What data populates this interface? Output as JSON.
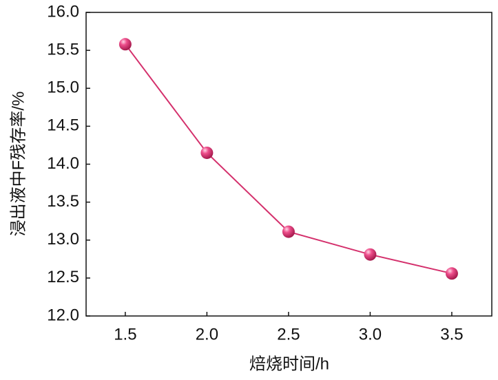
{
  "chart_data": {
    "type": "line",
    "xlabel": "焙烧时间/h",
    "ylabel": "浸出液中F残存率/%",
    "x": [
      1.5,
      2.0,
      2.5,
      3.0,
      3.5
    ],
    "series": [
      {
        "color": "#d4306c",
        "values": [
          15.58,
          14.15,
          13.11,
          12.81,
          12.56
        ]
      }
    ],
    "xlim": [
      1.26,
      3.745
    ],
    "xticks": [
      1.5,
      {
        "value": 2,
        "label": "2.0"
      },
      2.5,
      {
        "value": 3,
        "label": "3.0"
      },
      3.5
    ],
    "ylim": [
      12,
      16
    ],
    "yticks": [
      {
        "value": 12,
        "label": "12.0"
      },
      12.5,
      {
        "value": 13,
        "label": "13.0"
      },
      13.5,
      {
        "value": 14,
        "label": "14.0"
      },
      14.5,
      {
        "value": 15,
        "label": "15.0"
      },
      15.5,
      {
        "value": 16,
        "label": "16.0"
      }
    ],
    "grid": false
  }
}
